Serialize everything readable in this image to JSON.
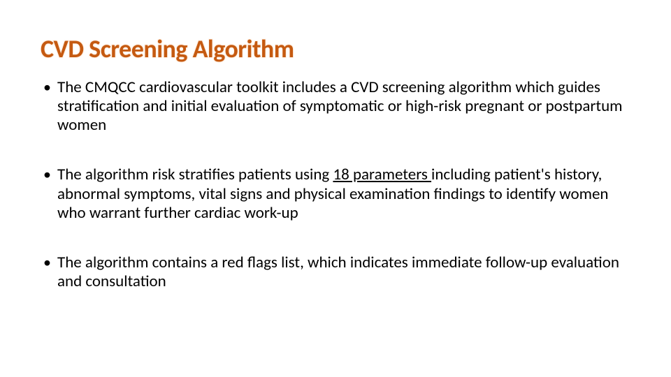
{
  "slide": {
    "title": "CVD Screening Algorithm",
    "title_color": "#c55a11",
    "title_fontsize": 36,
    "body_fontsize": 23,
    "body_color": "#000000",
    "background_color": "#ffffff",
    "bullets": [
      {
        "pre": "The CMQCC cardiovascular toolkit includes a CVD screening algorithm which guides stratification and initial evaluation of symptomatic or high-risk pregnant or postpartum women",
        "underlined": "",
        "post": ""
      },
      {
        "pre": "The algorithm risk stratifies patients using ",
        "underlined": "18 parameters ",
        "post": "including patient's history, abnormal symptoms, vital signs and physical examination findings to identify women who warrant further cardiac work-up"
      },
      {
        "pre": "The algorithm contains a red flags list, which indicates immediate follow-up evaluation and consultation",
        "underlined": "",
        "post": ""
      }
    ]
  }
}
